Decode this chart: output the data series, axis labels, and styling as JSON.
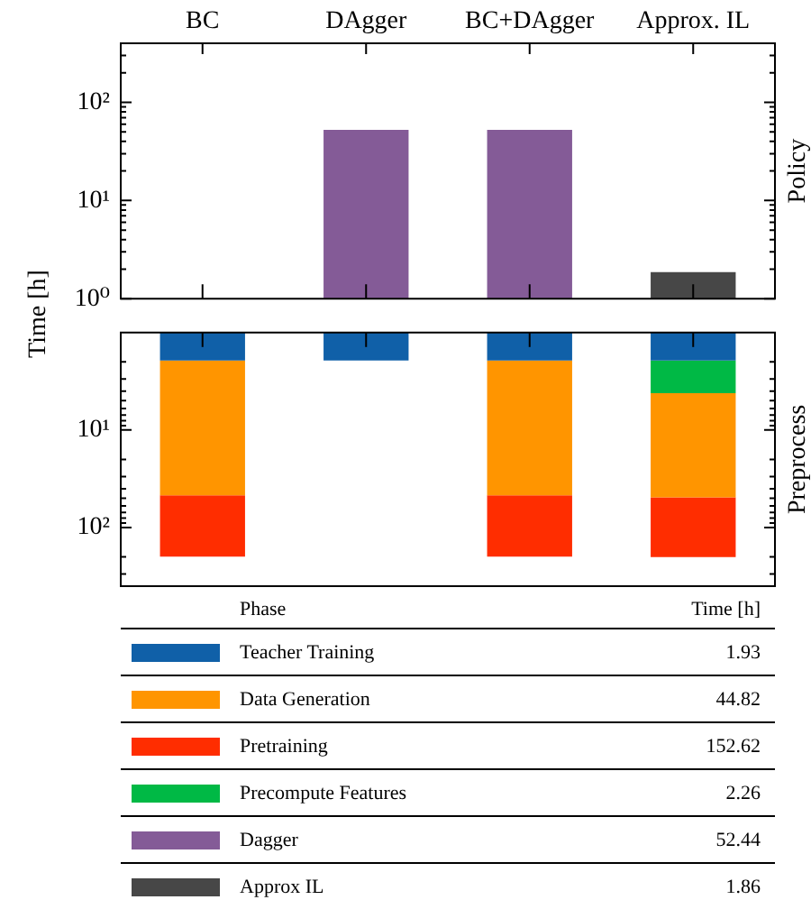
{
  "chart_data": [
    {
      "type": "bar",
      "stacked": true,
      "log": true,
      "grid": false,
      "ylabel": "Time [h]",
      "y2label": "Policy",
      "categories": [
        "BC",
        "DAgger",
        "BC+DAgger",
        "Approx. IL"
      ],
      "ylim": [
        1,
        400
      ],
      "yticks": [
        {
          "value": 1,
          "label": "10⁰"
        },
        {
          "value": 2,
          "label": null
        },
        {
          "value": 3,
          "label": null
        },
        {
          "value": 4,
          "label": null
        },
        {
          "value": 5,
          "label": null
        },
        {
          "value": 6,
          "label": null
        },
        {
          "value": 7,
          "label": null
        },
        {
          "value": 8,
          "label": null
        },
        {
          "value": 9,
          "label": null
        },
        {
          "value": 10,
          "label": "10¹"
        },
        {
          "value": 20,
          "label": null
        },
        {
          "value": 30,
          "label": null
        },
        {
          "value": 40,
          "label": null
        },
        {
          "value": 50,
          "label": null
        },
        {
          "value": 60,
          "label": null
        },
        {
          "value": 70,
          "label": null
        },
        {
          "value": 80,
          "label": null
        },
        {
          "value": 90,
          "label": null
        },
        {
          "value": 100,
          "label": "10²"
        },
        {
          "value": 200,
          "label": null
        },
        {
          "value": 300,
          "label": null
        }
      ],
      "series": [
        {
          "color": "#845b97",
          "values": [
            null,
            52.44,
            52.44,
            null
          ]
        },
        {
          "color": "#474747",
          "values": [
            null,
            null,
            null,
            1.86
          ]
        }
      ]
    },
    {
      "type": "bar",
      "stacked": true,
      "log": true,
      "grid": false,
      "tick_labels": "y",
      "y2label": "Preprocess",
      "categories": [
        null,
        null,
        null,
        null
      ],
      "ylim": [
        400,
        1
      ],
      "yticks": [
        {
          "value": 2,
          "label": null
        },
        {
          "value": 3,
          "label": null
        },
        {
          "value": 4,
          "label": null
        },
        {
          "value": 5,
          "label": null
        },
        {
          "value": 6,
          "label": null
        },
        {
          "value": 7,
          "label": null
        },
        {
          "value": 8,
          "label": null
        },
        {
          "value": 9,
          "label": null
        },
        {
          "value": 10,
          "label": "10¹"
        },
        {
          "value": 20,
          "label": null
        },
        {
          "value": 30,
          "label": null
        },
        {
          "value": 40,
          "label": null
        },
        {
          "value": 50,
          "label": null
        },
        {
          "value": 60,
          "label": null
        },
        {
          "value": 70,
          "label": null
        },
        {
          "value": 80,
          "label": null
        },
        {
          "value": 90,
          "label": null
        },
        {
          "value": 100,
          "label": "10²"
        },
        {
          "value": 200,
          "label": null
        },
        {
          "value": 300,
          "label": null
        }
      ],
      "series": [
        {
          "color": "#1060a8",
          "values": [
            1.93,
            1.93,
            1.93,
            1.93
          ]
        },
        {
          "color": "#00b945",
          "values": [
            null,
            null,
            null,
            2.26
          ]
        },
        {
          "color": "#ff9500",
          "values": [
            44.82,
            null,
            44.82,
            44.82
          ]
        },
        {
          "color": "#ff2d00",
          "values": [
            152.62,
            null,
            152.62,
            152.62
          ]
        }
      ]
    },
    {
      "type": "other",
      "data_labels": true,
      "xlabel": "Phase",
      "ylabel": "Time [h]",
      "categories": [
        "Teacher Training",
        "Data Generation",
        "Pretraining",
        "Precompute Features",
        "Dagger",
        "Approx IL"
      ],
      "values": [
        1.93,
        44.82,
        152.62,
        2.26,
        52.44,
        1.86
      ],
      "colors": [
        "#1060a8",
        "#ff9500",
        "#ff2d00",
        "#00b945",
        "#845b97",
        "#474747"
      ]
    }
  ]
}
